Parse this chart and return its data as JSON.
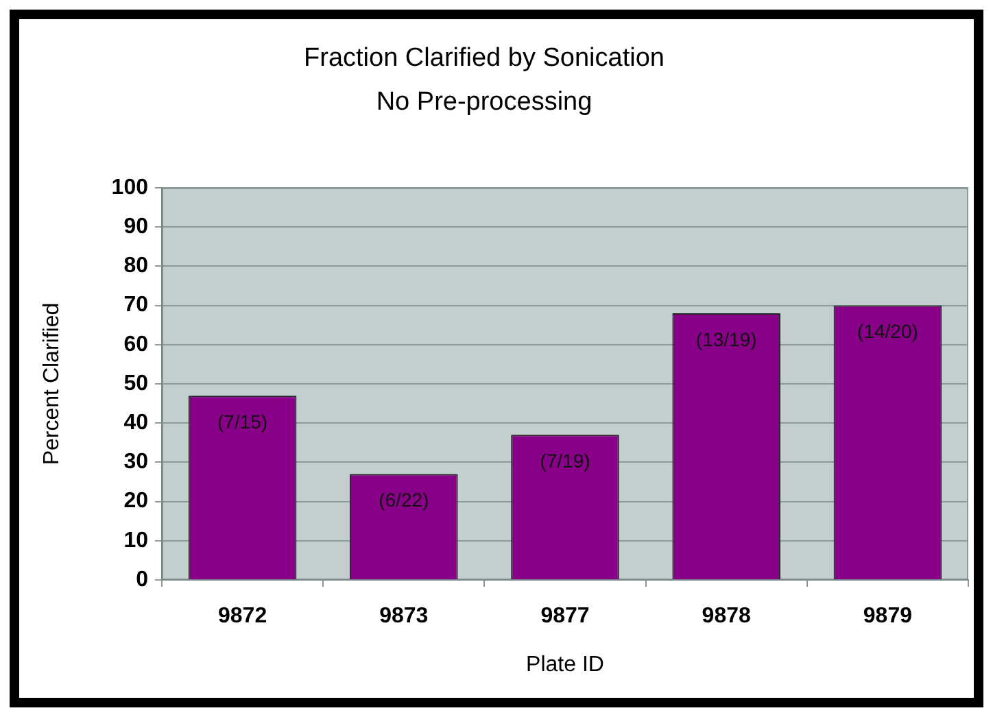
{
  "chart_data": {
    "type": "bar",
    "title": "Fraction Clarified by Sonication",
    "subtitle": "No Pre-processing",
    "xlabel": "Plate ID",
    "ylabel": "Percent Clarified",
    "categories": [
      "9872",
      "9873",
      "9877",
      "9878",
      "9879"
    ],
    "values": [
      47,
      27,
      37,
      68,
      70
    ],
    "value_labels": [
      "(7/15)",
      "(6/22)",
      "(7/19)",
      "(13/19)",
      "(14/20)"
    ],
    "color": "#880088",
    "ylim": [
      0,
      100
    ],
    "yticks": [
      0,
      10,
      20,
      30,
      40,
      50,
      60,
      70,
      80,
      90,
      100
    ],
    "grid": "y",
    "legend": false
  }
}
